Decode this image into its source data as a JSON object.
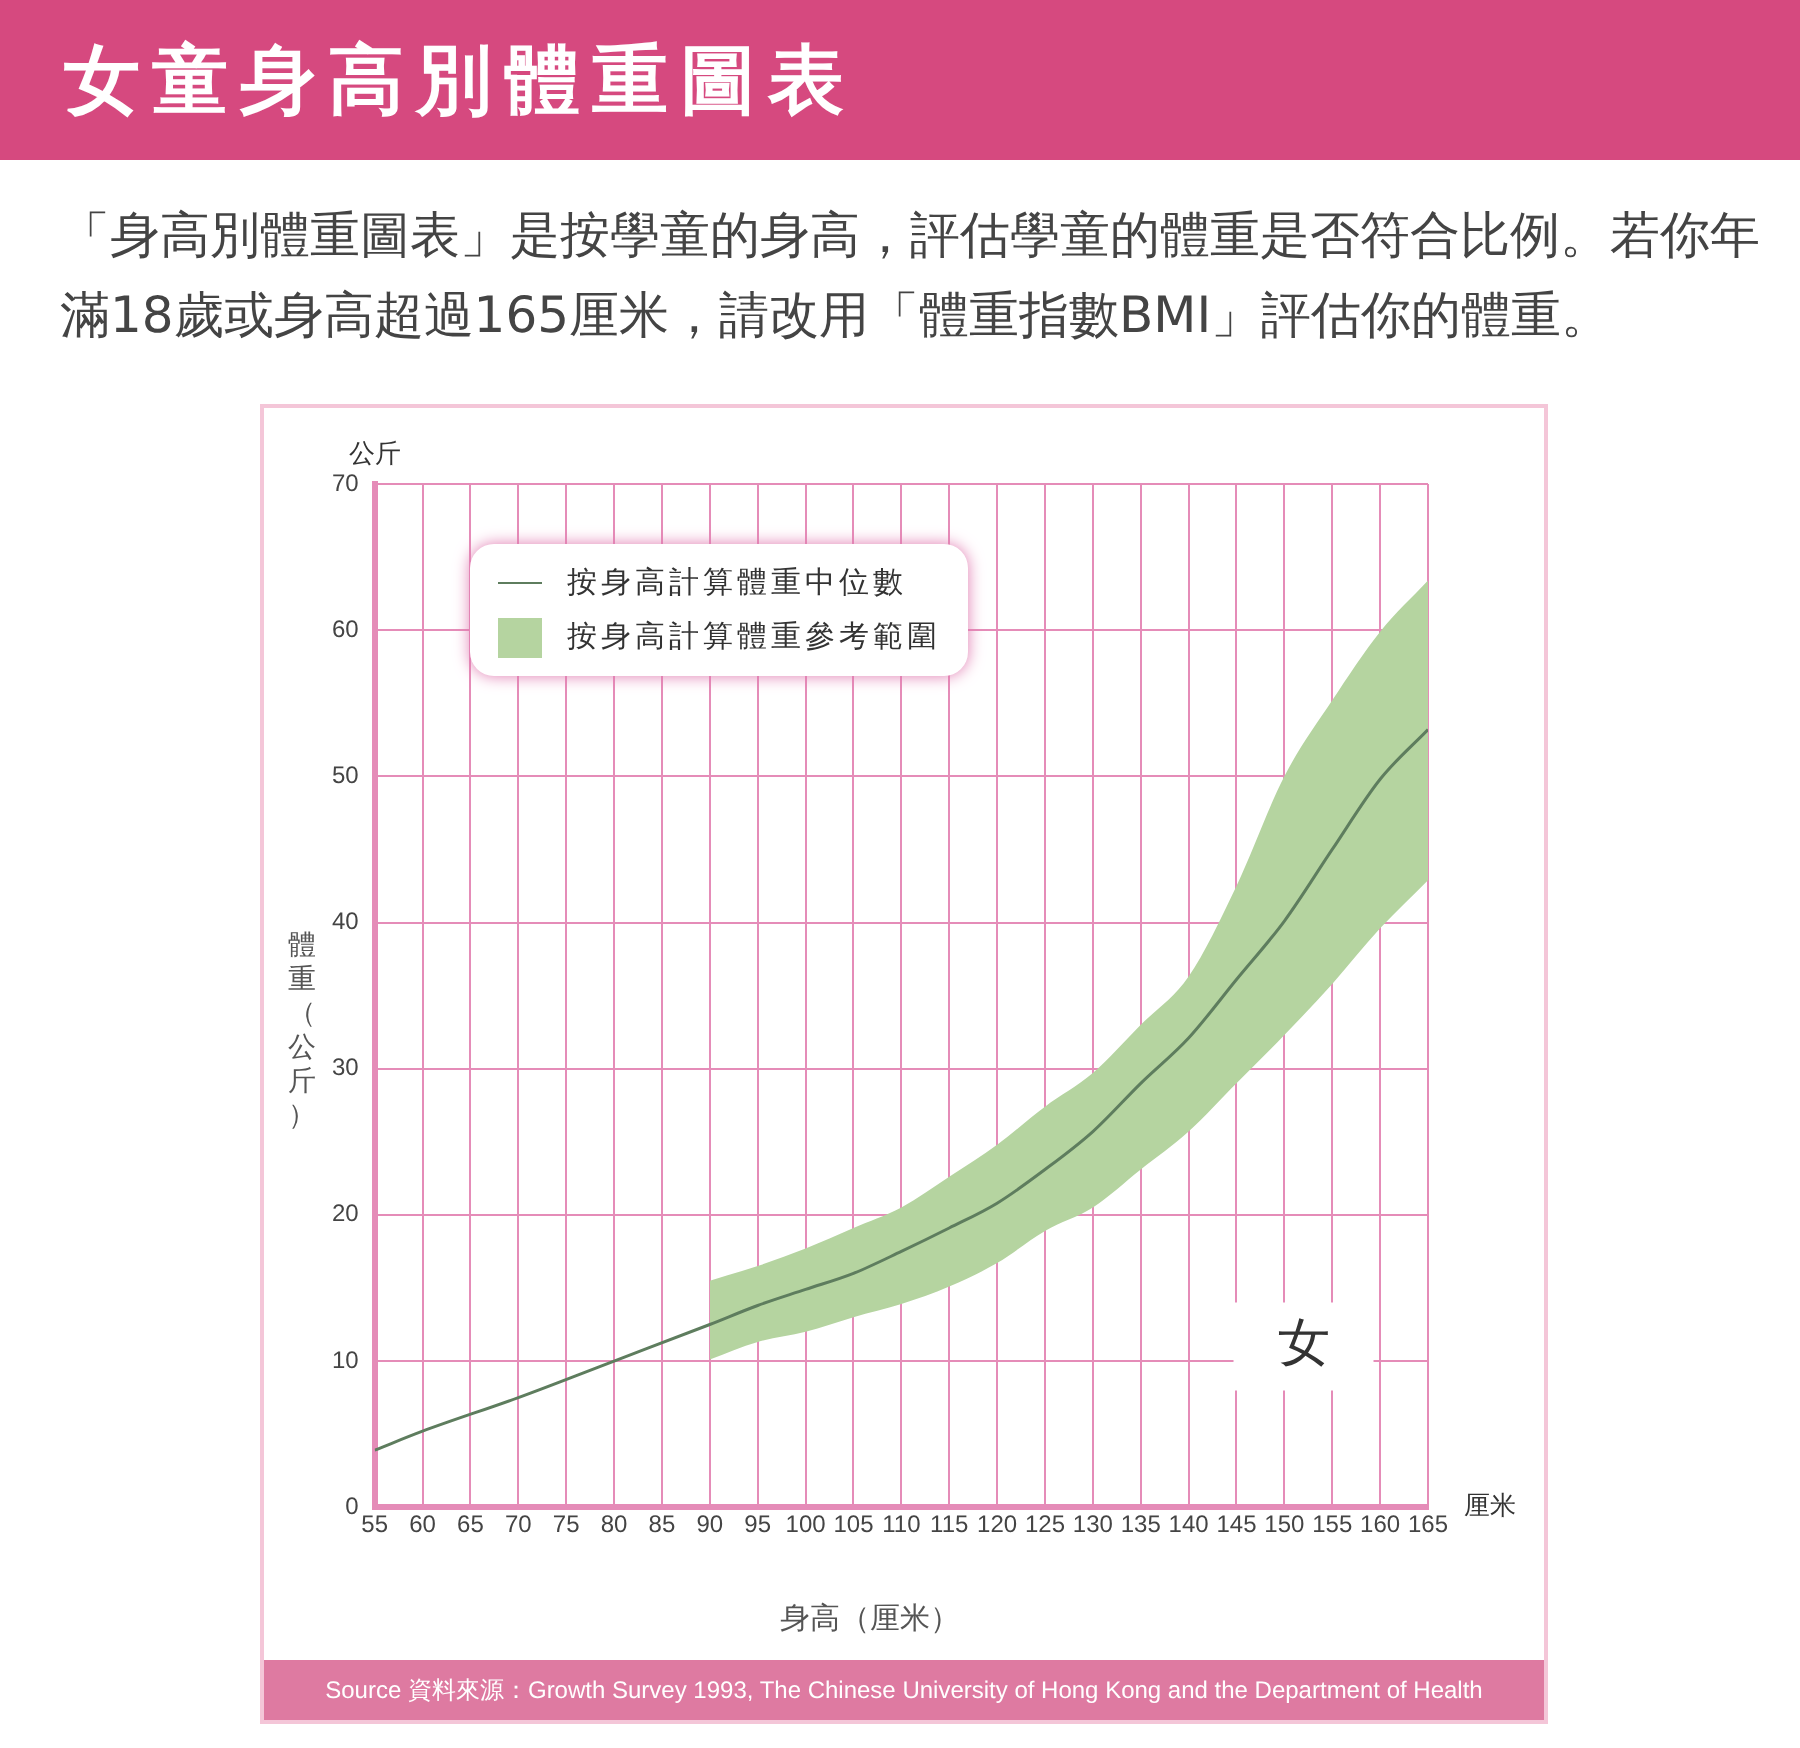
{
  "chart_data": {
    "type": "line",
    "title": "女童身高別體重圖表",
    "subtitle": "「身高別體重圖表」是按學童的身高，評估學童的體重是否符合比例。若你年滿18歲或身高超過165厘米，請改用「體重指數BMI」評估你的體重。",
    "xlabel": "身高（厘米）",
    "ylabel": "體重（公斤）",
    "xlim": [
      55,
      165
    ],
    "xticks": [
      55,
      60,
      65,
      70,
      75,
      80,
      85,
      90,
      95,
      100,
      105,
      110,
      115,
      120,
      125,
      130,
      135,
      140,
      145,
      150,
      155,
      160,
      165
    ],
    "ylim": [
      0,
      70
    ],
    "yticks": [
      0,
      10,
      20,
      30,
      40,
      50,
      60,
      70
    ],
    "grid": true,
    "legend": "top left",
    "series": [
      {
        "name": "按身高計算體重中位數",
        "color": "#5e7d5e",
        "x": [
          55,
          60,
          70,
          80,
          90,
          95,
          100,
          105,
          110,
          115,
          120,
          125,
          130,
          135,
          140,
          145,
          150,
          155,
          160,
          165
        ],
        "values": [
          3.9,
          5.2,
          7.5,
          10.0,
          12.5,
          13.8,
          14.9,
          16.0,
          17.5,
          19.1,
          20.8,
          23.1,
          25.7,
          29.0,
          32.1,
          36.1,
          40.1,
          45.0,
          49.8,
          53.2
        ],
        "lower": [
          null,
          null,
          null,
          null,
          10.1,
          11.3,
          12.0,
          13.0,
          13.9,
          15.1,
          16.7,
          18.9,
          20.5,
          23.1,
          25.7,
          29.0,
          32.3,
          35.8,
          39.6,
          42.9
        ],
        "upper": [
          null,
          null,
          null,
          null,
          15.5,
          16.5,
          17.7,
          19.1,
          20.5,
          22.6,
          24.8,
          27.4,
          29.7,
          33.0,
          36.3,
          42.5,
          50.0,
          55.2,
          59.9,
          63.4
        ]
      }
    ],
    "annotations": [
      "公斤",
      "厘米",
      "女",
      "Source 資料來源：Growth Survey 1993, The Chinese University of Hong Kong and the Department of Health",
      "按身高計算體重參考範圍"
    ]
  }
}
